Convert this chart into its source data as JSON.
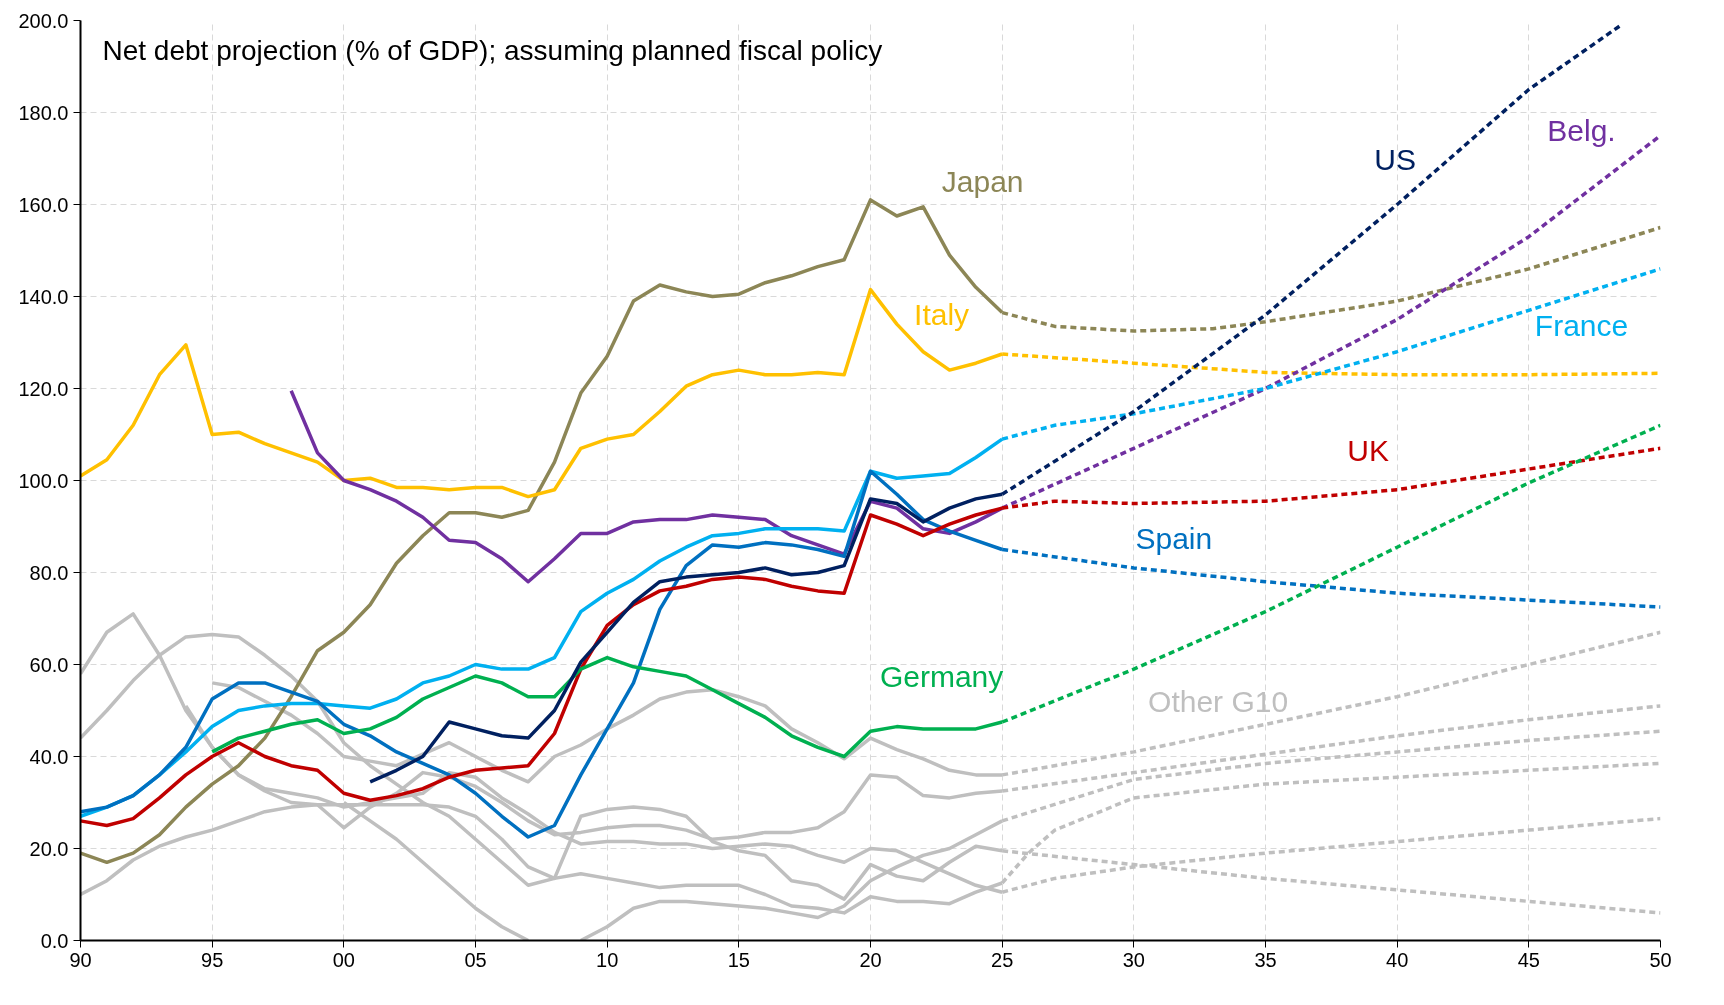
{
  "chart_data": {
    "type": "line",
    "title": "Net debt projection (% of GDP); assuming planned fiscal policy",
    "xlim": [
      1990,
      2050
    ],
    "ylim": [
      0,
      200
    ],
    "xticks": [
      {
        "value": 1990,
        "label": "90"
      },
      {
        "value": 1995,
        "label": "95"
      },
      {
        "value": 2000,
        "label": "00"
      },
      {
        "value": 2005,
        "label": "05"
      },
      {
        "value": 2010,
        "label": "10"
      },
      {
        "value": 2015,
        "label": "15"
      },
      {
        "value": 2020,
        "label": "20"
      },
      {
        "value": 2025,
        "label": "25"
      },
      {
        "value": 2030,
        "label": "30"
      },
      {
        "value": 2035,
        "label": "35"
      },
      {
        "value": 2040,
        "label": "40"
      },
      {
        "value": 2045,
        "label": "45"
      },
      {
        "value": 2050,
        "label": "50"
      }
    ],
    "yticks": [
      {
        "value": 0,
        "label": "0.0"
      },
      {
        "value": 20,
        "label": "20.0"
      },
      {
        "value": 40,
        "label": "40.0"
      },
      {
        "value": 60,
        "label": "60.0"
      },
      {
        "value": 80,
        "label": "80.0"
      },
      {
        "value": 100,
        "label": "100.0"
      },
      {
        "value": 120,
        "label": "120.0"
      },
      {
        "value": 140,
        "label": "140.0"
      },
      {
        "value": 160,
        "label": "160.0"
      },
      {
        "value": 180,
        "label": "180.0"
      },
      {
        "value": 200,
        "label": "200.0"
      }
    ],
    "grid": true,
    "series": [
      {
        "name": "Other G10",
        "color": "#bfbfbf",
        "line_style": "solid",
        "x": [
          1995,
          1996,
          1997,
          1998,
          1999,
          2000,
          2001,
          2002,
          2003,
          2004,
          2005,
          2006,
          2007,
          2008,
          2009,
          2010,
          2011,
          2012,
          2013,
          2014,
          2015,
          2016,
          2017,
          2018,
          2019,
          2020,
          2021,
          2022,
          2023,
          2024,
          2025
        ],
        "values": [
          56,
          55,
          52,
          49,
          45,
          40,
          39,
          38,
          40.5,
          43,
          40,
          37,
          34.5,
          40,
          42.5,
          46,
          49,
          52.5,
          54,
          54.5,
          53,
          51,
          46,
          43,
          39.5,
          44,
          41.5,
          39.5,
          37,
          36,
          36
        ]
      },
      {
        "color": "#bfbfbf",
        "line_style": "dashed",
        "x": [
          2025,
          2030,
          2035,
          2040,
          2045,
          2050
        ],
        "values": [
          36,
          41,
          47,
          53,
          60,
          67
        ]
      },
      {
        "color": "#bfbfbf",
        "line_style": "solid",
        "x": [
          1990,
          1991,
          1992,
          1993,
          1994,
          1995,
          1996,
          1997,
          1998,
          1999,
          2000,
          2001,
          2002,
          2003,
          2004,
          2005,
          2006,
          2007,
          2008,
          2009,
          2010,
          2011,
          2012,
          2013,
          2014,
          2015,
          2016,
          2017,
          2018,
          2019,
          2020,
          2021,
          2022,
          2023,
          2024,
          2025
        ],
        "values": [
          58,
          67,
          71,
          62,
          50,
          42,
          36,
          32.5,
          30,
          29.5,
          24.5,
          29,
          32,
          36.5,
          35.5,
          33.5,
          30,
          26,
          23,
          23.5,
          24.5,
          25,
          25,
          24,
          22,
          22.5,
          23.5,
          23.5,
          24.5,
          28,
          36,
          35.5,
          31.5,
          31,
          32,
          32.5
        ]
      },
      {
        "color": "#bfbfbf",
        "line_style": "dashed",
        "x": [
          2025,
          2030,
          2035,
          2040,
          2045,
          2050
        ],
        "values": [
          32.5,
          36.5,
          40.5,
          44.5,
          48,
          51
        ]
      },
      {
        "color": "#bfbfbf",
        "line_style": "solid",
        "x": [
          1990,
          1991,
          1992,
          1993,
          1994,
          1995,
          1996,
          1997,
          1998,
          1999,
          2000,
          2001,
          2002,
          2003,
          2004,
          2005,
          2006,
          2007,
          2008,
          2009,
          2010,
          2011,
          2012,
          2013,
          2014,
          2015,
          2016,
          2017,
          2018,
          2019,
          2020,
          2021,
          2022,
          2023,
          2024,
          2025
        ],
        "values": [
          44,
          50,
          56.5,
          62,
          66,
          66.5,
          66,
          62,
          57.5,
          52,
          43,
          38,
          34,
          30,
          27,
          22,
          17,
          12,
          13.5,
          27,
          28.5,
          29,
          28.5,
          27,
          21.5,
          19.5,
          18.5,
          13,
          12,
          9,
          16.5,
          14,
          13,
          17,
          20.5,
          19.5
        ]
      },
      {
        "color": "#bfbfbf",
        "line_style": "dashed",
        "x": [
          2025,
          2030,
          2035,
          2040,
          2045,
          2050
        ],
        "values": [
          19.5,
          16.5,
          13.5,
          11,
          8.5,
          6
        ]
      },
      {
        "color": "#bfbfbf",
        "line_style": "solid",
        "x": [
          1990,
          1991,
          1992,
          1993,
          1994,
          1995,
          1996,
          1997,
          1998,
          1999,
          2000,
          2001,
          2002,
          2003,
          2004,
          2005,
          2006,
          2007,
          2008,
          2009,
          2010,
          2011,
          2012,
          2013,
          2014,
          2015,
          2016,
          2017,
          2018,
          2019,
          2020,
          2021,
          2022,
          2023,
          2024,
          2025
        ],
        "values": [
          10,
          13,
          17.5,
          20.5,
          22.5,
          24,
          26,
          28,
          29,
          29.5,
          29.5,
          29.5,
          29.5,
          29.5,
          29,
          27,
          22,
          16,
          13.5,
          14.5,
          13.5,
          12.5,
          11.5,
          12,
          12,
          12,
          10,
          7.5,
          7,
          6,
          9.5,
          8.5,
          8.5,
          8,
          10.5,
          12.5
        ]
      },
      {
        "color": "#bfbfbf",
        "line_style": "dashed",
        "x": [
          2025,
          2026,
          2027,
          2030,
          2035,
          2040,
          2045,
          2050
        ],
        "values": [
          12.5,
          19,
          24,
          31,
          34,
          35.5,
          37,
          38.5
        ]
      },
      {
        "color": "#bfbfbf",
        "line_style": "solid",
        "x": [
          2000,
          2001,
          2002,
          2003,
          2004,
          2005,
          2006,
          2007,
          2008,
          2009,
          2010,
          2011,
          2012,
          2013,
          2014,
          2015,
          2016,
          2017,
          2018,
          2019,
          2020,
          2021,
          2022,
          2023,
          2024,
          2025
        ],
        "values": [
          30,
          26,
          22,
          17,
          12,
          7,
          3,
          0,
          null,
          0,
          3,
          7,
          8.5,
          8.5,
          8,
          7.5,
          7,
          6,
          5,
          7.5,
          13,
          16,
          18.5,
          20,
          23,
          26
        ]
      },
      {
        "color": "#bfbfbf",
        "line_style": "dashed",
        "x": [
          2025,
          2030,
          2035,
          2040,
          2045,
          2050
        ],
        "values": [
          26,
          35,
          38.5,
          41,
          43.5,
          45.5
        ]
      },
      {
        "color": "#bfbfbf",
        "line_style": "solid",
        "x": [
          1994,
          1995,
          1996,
          1997,
          1998,
          1999,
          2000,
          2001,
          2002,
          2003,
          2004,
          2005,
          2006,
          2007,
          2008,
          2009,
          2010,
          2011,
          2012,
          2013,
          2014,
          2015,
          2016,
          2017,
          2018,
          2019,
          2020,
          2021,
          2022,
          2023,
          2024,
          2025
        ],
        "values": [
          51,
          42,
          36,
          33,
          32,
          31,
          29,
          30,
          31,
          32,
          36.5,
          35.5,
          31,
          27.5,
          23.5,
          21,
          21.5,
          21.5,
          21,
          21,
          20,
          20.5,
          21,
          20.5,
          18.5,
          17,
          20,
          19.5,
          17,
          14.5,
          12,
          10.5
        ]
      },
      {
        "color": "#bfbfbf",
        "line_style": "dashed",
        "x": [
          2025,
          2027,
          2030,
          2035,
          2040,
          2045,
          2050
        ],
        "values": [
          10.5,
          13.5,
          16,
          19,
          21.5,
          24,
          26.5
        ]
      },
      {
        "name": "Japan",
        "color": "#8c8656",
        "line_style": "solid",
        "x": [
          1990,
          1991,
          1992,
          1993,
          1994,
          1995,
          1996,
          1997,
          1998,
          1999,
          2000,
          2001,
          2002,
          2003,
          2004,
          2005,
          2006,
          2007,
          2008,
          2009,
          2010,
          2011,
          2012,
          2013,
          2014,
          2015,
          2016,
          2017,
          2018,
          2019,
          2020,
          2021,
          2022,
          2023,
          2024,
          2025
        ],
        "values": [
          19,
          17,
          19,
          23,
          29,
          34,
          38,
          44,
          53,
          63,
          67,
          73,
          82,
          88,
          93,
          93,
          92,
          93.5,
          104,
          119,
          127,
          139,
          142.5,
          141,
          140,
          140.5,
          143,
          144.5,
          146.5,
          148,
          161,
          157.5,
          159.5,
          149,
          142,
          136.5
        ]
      },
      {
        "color": "#8c8656",
        "line_style": "dashed",
        "x": [
          2025,
          2027,
          2030,
          2033,
          2035,
          2040,
          2045,
          2050
        ],
        "values": [
          136.5,
          133.5,
          132.5,
          133,
          134.5,
          139,
          146,
          155
        ]
      },
      {
        "name": "Italy",
        "color": "#ffc000",
        "line_style": "solid",
        "x": [
          1990,
          1991,
          1992,
          1993,
          1994,
          1995,
          1996,
          1997,
          1998,
          1999,
          2000,
          2001,
          2002,
          2003,
          2004,
          2005,
          2006,
          2007,
          2008,
          2009,
          2010,
          2011,
          2012,
          2013,
          2014,
          2015,
          2016,
          2017,
          2018,
          2019,
          2020,
          2021,
          2022,
          2023,
          2024,
          2025
        ],
        "values": [
          101,
          104.5,
          112,
          123,
          129.5,
          110,
          110.5,
          108,
          106,
          104,
          100,
          100.5,
          98.5,
          98.5,
          98,
          98.5,
          98.5,
          96.5,
          98,
          107,
          109,
          110,
          115,
          120.5,
          123,
          124,
          123,
          123,
          123.5,
          123,
          141.5,
          134,
          128,
          124,
          125.5,
          127.5
        ]
      },
      {
        "color": "#ffc000",
        "line_style": "dashed",
        "x": [
          2025,
          2030,
          2035,
          2040,
          2045,
          2050
        ],
        "values": [
          127.5,
          125.5,
          123.5,
          123,
          123,
          123.3
        ]
      },
      {
        "name": "Belg.",
        "color": "#7030a0",
        "line_style": "solid",
        "x": [
          1998,
          1999,
          2000,
          2001,
          2002,
          2003,
          2004,
          2005,
          2006,
          2007,
          2008,
          2009,
          2010,
          2011,
          2012,
          2013,
          2014,
          2015,
          2016,
          2017,
          2018,
          2019,
          2020,
          2021,
          2022,
          2023,
          2024,
          2025
        ],
        "values": [
          119.5,
          106,
          100,
          98,
          95.5,
          92,
          87,
          86.5,
          83,
          78,
          83,
          88.5,
          88.5,
          91,
          91.5,
          91.5,
          92.5,
          92,
          91.5,
          88,
          86,
          84,
          95.5,
          94,
          89.5,
          88.5,
          91,
          94
        ]
      },
      {
        "color": "#7030a0",
        "line_style": "dashed",
        "x": [
          2025,
          2030,
          2035,
          2040,
          2045,
          2050
        ],
        "values": [
          94,
          107,
          120,
          135,
          153,
          175
        ]
      },
      {
        "name": "France",
        "color": "#00b0f0",
        "line_style": "solid",
        "x": [
          1990,
          1991,
          1992,
          1993,
          1994,
          1995,
          1996,
          1997,
          1998,
          1999,
          2000,
          2001,
          2002,
          2003,
          2004,
          2005,
          2006,
          2007,
          2008,
          2009,
          2010,
          2011,
          2012,
          2013,
          2014,
          2015,
          2016,
          2017,
          2018,
          2019,
          2020,
          2021,
          2022,
          2023,
          2024,
          2025
        ],
        "values": [
          27,
          29,
          31.5,
          36,
          41,
          46.5,
          50,
          51,
          51.5,
          51.5,
          51,
          50.5,
          52.5,
          56,
          57.5,
          60,
          59,
          59,
          61.5,
          71.5,
          75.5,
          78.5,
          82.5,
          85.5,
          88,
          88.5,
          89.5,
          89.5,
          89.5,
          89,
          102,
          100.5,
          101,
          101.5,
          105,
          109
        ]
      },
      {
        "color": "#00b0f0",
        "line_style": "dashed",
        "x": [
          2025,
          2027,
          2030,
          2035,
          2040,
          2045,
          2050
        ],
        "values": [
          109,
          112,
          114.5,
          120,
          128,
          137,
          146
        ]
      },
      {
        "name": "Spain",
        "color": "#0070c0",
        "line_style": "solid",
        "x": [
          1990,
          1991,
          1992,
          1993,
          1994,
          1995,
          1996,
          1997,
          1998,
          1999,
          2000,
          2001,
          2002,
          2003,
          2004,
          2005,
          2006,
          2007,
          2008,
          2009,
          2010,
          2011,
          2012,
          2013,
          2014,
          2015,
          2016,
          2017,
          2018,
          2019,
          2020,
          2021,
          2022,
          2023,
          2024,
          2025
        ],
        "values": [
          28,
          29,
          31.5,
          36,
          42,
          52.5,
          56,
          56,
          54,
          52,
          47,
          44.5,
          41,
          38.5,
          36,
          32,
          27,
          22.5,
          25,
          36,
          46,
          56,
          72,
          81.5,
          86,
          85.5,
          86.5,
          86,
          85,
          83.5,
          102,
          97,
          91.5,
          89,
          87,
          85
        ]
      },
      {
        "color": "#0070c0",
        "line_style": "dashed",
        "x": [
          2025,
          2030,
          2035,
          2040,
          2045,
          2050
        ],
        "values": [
          85,
          81,
          78,
          75.5,
          74,
          72.5
        ]
      },
      {
        "name": "UK",
        "color": "#c00000",
        "line_style": "solid",
        "x": [
          1990,
          1991,
          1992,
          1993,
          1994,
          1995,
          1996,
          1997,
          1998,
          1999,
          2000,
          2001,
          2002,
          2003,
          2004,
          2005,
          2006,
          2007,
          2008,
          2009,
          2010,
          2011,
          2012,
          2013,
          2014,
          2015,
          2016,
          2017,
          2018,
          2019,
          2020,
          2021,
          2022,
          2023,
          2024,
          2025
        ],
        "values": [
          26,
          25,
          26.5,
          31,
          36,
          40,
          43,
          40,
          38,
          37,
          32,
          30.5,
          31.5,
          33,
          35.5,
          37,
          37.5,
          38,
          45,
          59,
          68.5,
          73,
          76,
          77,
          78.5,
          79,
          78.5,
          77,
          76,
          75.5,
          92.5,
          90.5,
          88,
          90.5,
          92.5,
          94
        ]
      },
      {
        "color": "#c00000",
        "line_style": "dashed",
        "x": [
          2025,
          2027,
          2030,
          2035,
          2040,
          2045,
          2050
        ],
        "values": [
          94,
          95.5,
          95,
          95.5,
          98,
          102.5,
          107
        ]
      },
      {
        "name": "Germany",
        "color": "#00b050",
        "line_style": "solid",
        "x": [
          1995,
          1996,
          1997,
          1998,
          1999,
          2000,
          2001,
          2002,
          2003,
          2004,
          2005,
          2006,
          2007,
          2008,
          2009,
          2010,
          2011,
          2012,
          2013,
          2014,
          2015,
          2016,
          2017,
          2018,
          2019,
          2020,
          2021,
          2022,
          2023,
          2024,
          2025
        ],
        "values": [
          41,
          44,
          45.5,
          47,
          48,
          45,
          46,
          48.5,
          52.5,
          55,
          57.5,
          56,
          53,
          53,
          59,
          61.5,
          59.5,
          58.5,
          57.5,
          54.5,
          51.5,
          48.5,
          44.5,
          42,
          40,
          45.5,
          46.5,
          46,
          46,
          46,
          47.5
        ]
      },
      {
        "color": "#00b050",
        "line_style": "dashed",
        "x": [
          2025,
          2030,
          2035,
          2040,
          2045,
          2050
        ],
        "values": [
          47.5,
          59,
          71.5,
          85.5,
          99.5,
          112
        ]
      },
      {
        "name": "US",
        "color": "#002060",
        "line_style": "solid",
        "x": [
          2001,
          2002,
          2003,
          2004,
          2005,
          2006,
          2007,
          2008,
          2009,
          2010,
          2011,
          2012,
          2013,
          2014,
          2015,
          2016,
          2017,
          2018,
          2019,
          2020,
          2021,
          2022,
          2023,
          2024,
          2025
        ],
        "values": [
          34.5,
          37,
          40,
          47.5,
          46,
          44.5,
          44,
          50,
          60.5,
          67,
          73.5,
          78,
          79,
          79.5,
          80,
          81,
          79.5,
          80,
          81.5,
          96,
          95,
          91,
          94,
          96,
          97
        ]
      },
      {
        "color": "#002060",
        "line_style": "dashed",
        "x": [
          2025,
          2030,
          2035,
          2040,
          2045,
          2048.5
        ],
        "values": [
          97,
          115,
          136,
          160,
          185,
          199
        ]
      }
    ]
  }
}
